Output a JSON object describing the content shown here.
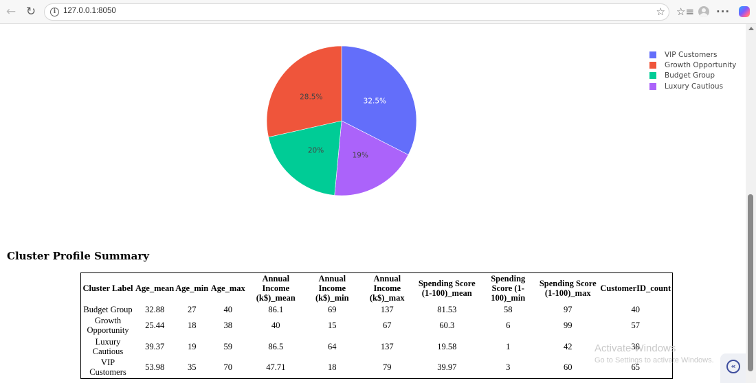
{
  "browser": {
    "url": "127.0.0.1:8050"
  },
  "chart_data": {
    "type": "pie",
    "labels": [
      "VIP Customers",
      "Growth Opportunity",
      "Budget Group",
      "Luxury Cautious"
    ],
    "values": [
      65,
      57,
      40,
      38
    ],
    "percent_labels": [
      "32.5%",
      "28.5%",
      "20%",
      "19%"
    ],
    "colors": [
      "#636efa",
      "#ef553b",
      "#00cc96",
      "#ab63fa"
    ],
    "slice_order": [
      "VIP Customers",
      "Luxury Cautious",
      "Budget Group",
      "Growth Opportunity"
    ],
    "label_colors": [
      "#ffffff",
      "#444444",
      "#444444",
      "#444444"
    ],
    "legend_position": "top-right"
  },
  "summary": {
    "title": "Cluster Profile Summary",
    "columns": [
      "Cluster Label",
      "Age_mean",
      "Age_min",
      "Age_max",
      "Annual Income (k$)_mean",
      "Annual Income (k$)_min",
      "Annual Income (k$)_max",
      "Spending Score (1-100)_mean",
      "Spending Score (1-100)_min",
      "Spending Score (1-100)_max",
      "CustomerID_count"
    ],
    "rows": [
      [
        "Budget Group",
        "32.88",
        "27",
        "40",
        "86.1",
        "69",
        "137",
        "81.53",
        "58",
        "97",
        "40"
      ],
      [
        "Growth Opportunity",
        "25.44",
        "18",
        "38",
        "40",
        "15",
        "67",
        "60.3",
        "6",
        "99",
        "57"
      ],
      [
        "Luxury Cautious",
        "39.37",
        "19",
        "59",
        "86.5",
        "64",
        "137",
        "19.58",
        "1",
        "42",
        "38"
      ],
      [
        "VIP Customers",
        "53.98",
        "35",
        "70",
        "47.71",
        "18",
        "79",
        "39.97",
        "3",
        "60",
        "65"
      ]
    ]
  },
  "watermark": {
    "title": "Activate Windows",
    "subtitle": "Go to Settings to activate Windows."
  }
}
